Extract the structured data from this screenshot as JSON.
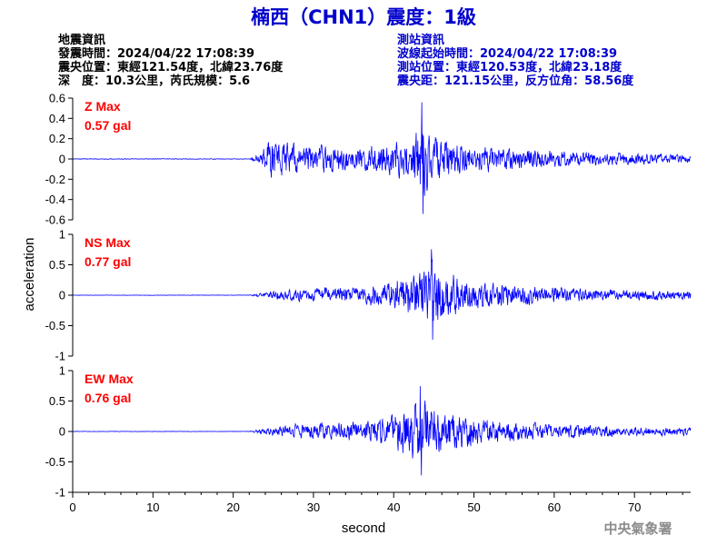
{
  "title": "楠西（CHN1）震度：1級",
  "colors": {
    "title": "#0000cc",
    "station_info": "#0000cc",
    "event_info": "#000000",
    "trace": "#0000ff",
    "max_label": "#ff0000",
    "axis": "#000000",
    "footer": "#8c8c8c"
  },
  "event_info": {
    "heading": "地震資訊",
    "origin_time": "發震時間：2024/04/22 17:08:39",
    "epicenter": "震央位置：東經121.54度，北緯23.76度",
    "depth_magnitude": "深　度：10.3公里，芮氏規模：5.6"
  },
  "station_info": {
    "heading": "測站資訊",
    "wave_start": "波線起始時間：2024/04/22 17:08:39",
    "station_location": "測站位置：東經120.53度，北緯23.18度",
    "distance_azimuth": "震央距：121.15公里，反方位角：58.56度"
  },
  "footer": "中央氣象署",
  "chart_data": {
    "type": "line",
    "xlabel": "second",
    "ylabel": "acceleration",
    "x_range": [
      0,
      77
    ],
    "x_ticks": [
      0,
      10,
      20,
      30,
      40,
      50,
      60,
      70
    ],
    "grid": false,
    "panels": [
      {
        "component": "Z",
        "max_label": "Z Max",
        "max_value": "0.57 gal",
        "ylim": [
          -0.6,
          0.6
        ],
        "y_ticks": [
          0.6,
          0.4,
          0.2,
          0,
          -0.2,
          -0.4,
          -0.6
        ],
        "y_tick_labels": [
          "0.6",
          "0.4",
          "0.2",
          "0",
          "-0.2",
          "-0.4",
          "-0.6"
        ],
        "pre_event_noise": 0.005,
        "envelope": [
          [
            22,
            0.005
          ],
          [
            23.5,
            0.1
          ],
          [
            24.5,
            0.3
          ],
          [
            26,
            0.25
          ],
          [
            30,
            0.2
          ],
          [
            35,
            0.15
          ],
          [
            38,
            0.2
          ],
          [
            40,
            0.25
          ],
          [
            42,
            0.3
          ],
          [
            43.5,
            0.57
          ],
          [
            44.5,
            0.4
          ],
          [
            46,
            0.28
          ],
          [
            48,
            0.22
          ],
          [
            50,
            0.2
          ],
          [
            55,
            0.15
          ],
          [
            60,
            0.12
          ],
          [
            65,
            0.1
          ],
          [
            70,
            0.08
          ],
          [
            77,
            0.06
          ]
        ]
      },
      {
        "component": "NS",
        "max_label": "NS Max",
        "max_value": "0.77 gal",
        "ylim": [
          -1,
          1
        ],
        "y_ticks": [
          1,
          0.5,
          0,
          -0.5,
          -1
        ],
        "y_tick_labels": [
          "1",
          "0.5",
          "0",
          "-0.5",
          "-1"
        ],
        "pre_event_noise": 0.005,
        "envelope": [
          [
            22,
            0.005
          ],
          [
            23.5,
            0.05
          ],
          [
            25,
            0.1
          ],
          [
            28,
            0.15
          ],
          [
            32,
            0.18
          ],
          [
            36,
            0.2
          ],
          [
            39,
            0.3
          ],
          [
            41,
            0.45
          ],
          [
            43,
            0.6
          ],
          [
            44.7,
            0.77
          ],
          [
            46,
            0.6
          ],
          [
            48,
            0.45
          ],
          [
            50,
            0.35
          ],
          [
            53,
            0.28
          ],
          [
            56,
            0.22
          ],
          [
            60,
            0.18
          ],
          [
            65,
            0.15
          ],
          [
            70,
            0.12
          ],
          [
            77,
            0.1
          ]
        ]
      },
      {
        "component": "EW",
        "max_label": "EW Max",
        "max_value": "0.76 gal",
        "ylim": [
          -1,
          1
        ],
        "y_ticks": [
          1,
          0.5,
          0,
          -0.5,
          -1
        ],
        "y_tick_labels": [
          "1",
          "0.5",
          "0",
          "-0.5",
          "-1"
        ],
        "pre_event_noise": 0.005,
        "envelope": [
          [
            22,
            0.005
          ],
          [
            23.5,
            0.07
          ],
          [
            25,
            0.12
          ],
          [
            28,
            0.18
          ],
          [
            32,
            0.2
          ],
          [
            36,
            0.22
          ],
          [
            39,
            0.35
          ],
          [
            41,
            0.5
          ],
          [
            43.3,
            0.76
          ],
          [
            45,
            0.6
          ],
          [
            47,
            0.45
          ],
          [
            50,
            0.35
          ],
          [
            53,
            0.28
          ],
          [
            56,
            0.22
          ],
          [
            60,
            0.18
          ],
          [
            65,
            0.14
          ],
          [
            70,
            0.11
          ],
          [
            77,
            0.09
          ]
        ]
      }
    ]
  }
}
